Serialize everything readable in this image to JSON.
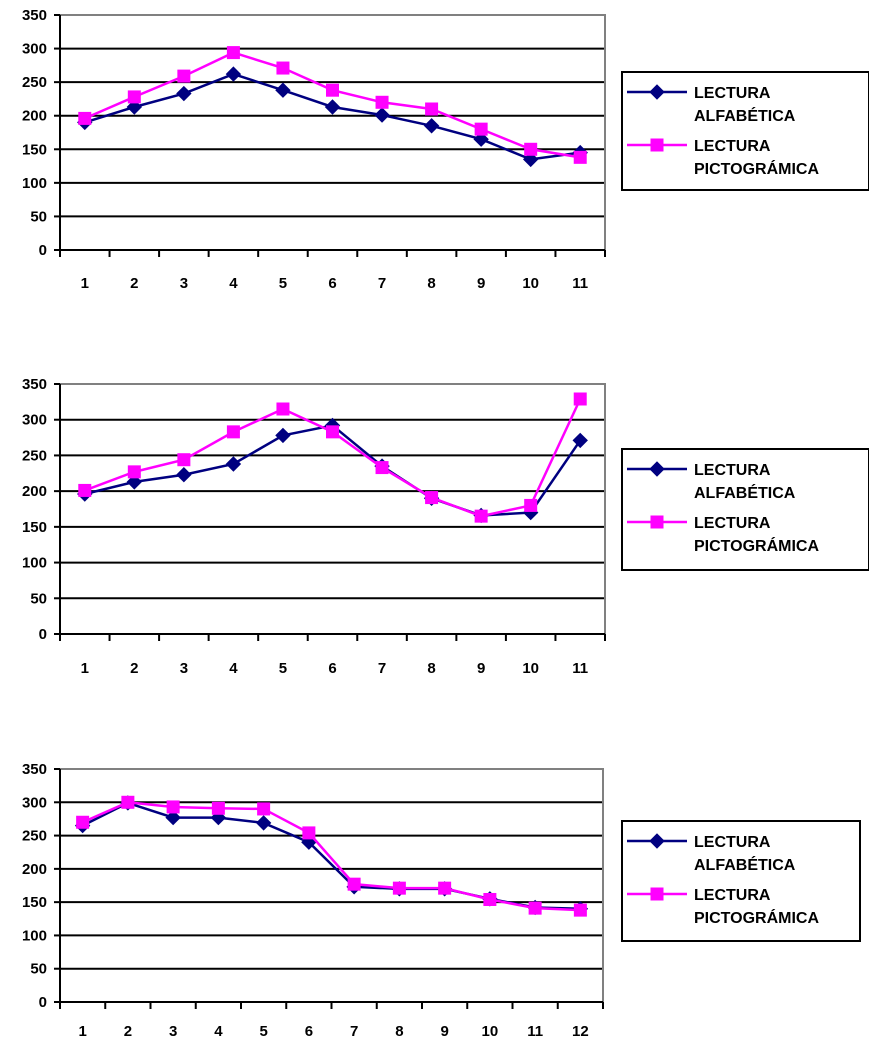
{
  "chart_data": [
    {
      "type": "line",
      "categories": [
        "1",
        "2",
        "3",
        "4",
        "5",
        "6",
        "7",
        "8",
        "9",
        "10",
        "11"
      ],
      "ylim": [
        0,
        350
      ],
      "yticks": [
        0,
        50,
        100,
        150,
        200,
        250,
        300,
        350
      ],
      "grid": true,
      "legend_position": "right",
      "series": [
        {
          "name": "LECTURA ALFABÉTICA",
          "legend_lines": [
            "LECTURA",
            "ALFABÉTICA"
          ],
          "color": "#000080",
          "marker": "diamond",
          "values": [
            190,
            213,
            233,
            262,
            238,
            213,
            201,
            185,
            165,
            135,
            145
          ]
        },
        {
          "name": "LECTURA PICTOGRÁMICA",
          "legend_lines": [
            "LECTURA",
            "PICTOGRÁMICA"
          ],
          "color": "#ff00ff",
          "marker": "square",
          "values": [
            196,
            228,
            259,
            294,
            271,
            238,
            220,
            210,
            180,
            150,
            138
          ]
        }
      ]
    },
    {
      "type": "line",
      "categories": [
        "1",
        "2",
        "3",
        "4",
        "5",
        "6",
        "7",
        "8",
        "9",
        "10",
        "11"
      ],
      "ylim": [
        0,
        350
      ],
      "yticks": [
        0,
        50,
        100,
        150,
        200,
        250,
        300,
        350
      ],
      "grid": true,
      "legend_position": "right",
      "series": [
        {
          "name": "LECTURA ALFABÉTICA",
          "legend_lines": [
            "LECTURA",
            "ALFABÉTICA"
          ],
          "color": "#000080",
          "marker": "diamond",
          "values": [
            196,
            213,
            223,
            238,
            278,
            292,
            235,
            190,
            166,
            170,
            271
          ]
        },
        {
          "name": "LECTURA PICTOGRÁMICA",
          "legend_lines": [
            "LECTURA",
            "PICTOGRÁMICA"
          ],
          "color": "#ff00ff",
          "marker": "square",
          "values": [
            201,
            227,
            244,
            283,
            315,
            283,
            233,
            191,
            165,
            180,
            329
          ]
        }
      ]
    },
    {
      "type": "line",
      "categories": [
        "1",
        "2",
        "3",
        "4",
        "5",
        "6",
        "7",
        "8",
        "9",
        "10",
        "11",
        "12"
      ],
      "ylim": [
        0,
        350
      ],
      "yticks": [
        0,
        50,
        100,
        150,
        200,
        250,
        300,
        350
      ],
      "grid": true,
      "legend_position": "right",
      "series": [
        {
          "name": "LECTURA ALFABÉTICA",
          "legend_lines": [
            "LECTURA",
            "ALFABÉTICA"
          ],
          "color": "#000080",
          "marker": "diamond",
          "values": [
            265,
            299,
            277,
            277,
            269,
            240,
            173,
            170,
            170,
            155,
            142,
            140
          ]
        },
        {
          "name": "LECTURA PICTOGRÁMICA",
          "legend_lines": [
            "LECTURA",
            "PICTOGRÁMICA"
          ],
          "color": "#ff00ff",
          "marker": "square",
          "values": [
            270,
            300,
            293,
            291,
            290,
            254,
            177,
            171,
            171,
            154,
            141,
            138
          ]
        }
      ]
    }
  ]
}
